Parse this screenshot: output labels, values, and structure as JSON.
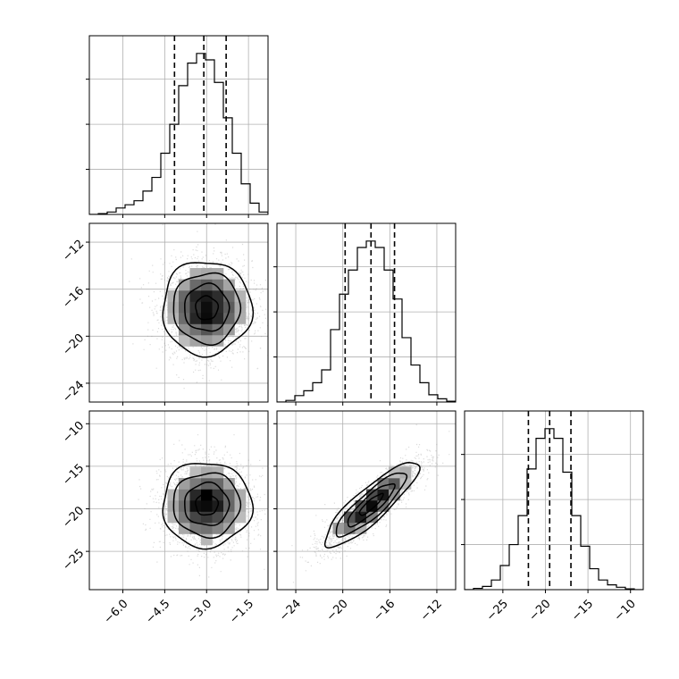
{
  "chart_data": {
    "type": "corner",
    "title": "",
    "grid": true,
    "parameters": [
      {
        "label": "",
        "axis_ticks": [
          -6.0,
          -4.5,
          -3.0,
          -1.5
        ],
        "tick_labels": [
          "−6.0",
          "−4.5",
          "−3.0",
          "−1.5"
        ],
        "range": [
          -7.2,
          -0.8
        ]
      },
      {
        "label": "",
        "axis_ticks": [
          -24,
          -20,
          -16,
          -12
        ],
        "tick_labels": [
          "−24",
          "−20",
          "−16",
          "−12"
        ],
        "range": [
          -25.6,
          -10.4
        ]
      },
      {
        "label": "",
        "axis_ticks": [
          -25,
          -20,
          -15,
          -10
        ],
        "tick_labels": [
          "−25",
          "−20",
          "−15",
          "−10"
        ],
        "range": [
          -29.5,
          -8.5
        ]
      }
    ],
    "marginals": [
      {
        "param": 0,
        "bin_edges": [
          -7.2,
          -6.88,
          -6.56,
          -6.24,
          -5.92,
          -5.6,
          -5.28,
          -4.96,
          -4.64,
          -4.32,
          -4.0,
          -3.68,
          -3.36,
          -3.04,
          -2.72,
          -2.4,
          -2.08,
          -1.76,
          -1.44,
          -1.12,
          -0.8
        ],
        "counts": [
          0,
          0.005,
          0.015,
          0.04,
          0.06,
          0.085,
          0.145,
          0.23,
          0.38,
          0.56,
          0.8,
          0.94,
          1.0,
          0.96,
          0.82,
          0.6,
          0.38,
          0.19,
          0.07,
          0.015
        ],
        "quantiles": [
          -4.15,
          -3.1,
          -2.3
        ]
      },
      {
        "param": 1,
        "bin_edges": [
          -25.6,
          -24.84,
          -24.08,
          -23.32,
          -22.56,
          -21.8,
          -21.04,
          -20.28,
          -19.52,
          -18.76,
          -18.0,
          -17.24,
          -16.48,
          -15.72,
          -14.96,
          -14.2,
          -13.44,
          -12.68,
          -11.92,
          -11.16,
          -10.4
        ],
        "counts": [
          0,
          0.01,
          0.04,
          0.07,
          0.12,
          0.2,
          0.45,
          0.67,
          0.82,
          0.96,
          1.0,
          0.96,
          0.82,
          0.64,
          0.4,
          0.23,
          0.12,
          0.045,
          0.02,
          0.005
        ],
        "quantiles": [
          -19.8,
          -17.6,
          -15.6
        ]
      },
      {
        "param": 2,
        "bin_edges": [
          -29.5,
          -28.45,
          -27.4,
          -26.35,
          -25.3,
          -24.25,
          -23.2,
          -22.15,
          -21.1,
          -20.05,
          -19.0,
          -17.95,
          -16.9,
          -15.85,
          -14.8,
          -13.75,
          -12.7,
          -11.65,
          -10.6,
          -9.55,
          -8.5
        ],
        "counts": [
          0,
          0.008,
          0.02,
          0.06,
          0.15,
          0.28,
          0.46,
          0.75,
          0.94,
          1.0,
          0.94,
          0.73,
          0.46,
          0.27,
          0.13,
          0.06,
          0.03,
          0.015,
          0.005,
          0
        ],
        "quantiles": [
          -22.0,
          -19.5,
          -17.0
        ]
      }
    ],
    "joints": [
      {
        "x_param": 0,
        "y_param": 1,
        "center": [
          -3.0,
          -17.6
        ],
        "sigma": [
          0.8,
          2.0
        ],
        "correlation": 0.0,
        "contour_levels": [
          0.118,
          0.393,
          0.675,
          0.864
        ]
      },
      {
        "x_param": 0,
        "y_param": 2,
        "center": [
          -3.0,
          -19.5
        ],
        "sigma": [
          0.8,
          2.5
        ],
        "correlation": 0.0,
        "contour_levels": [
          0.118,
          0.393,
          0.675,
          0.864
        ]
      },
      {
        "x_param": 1,
        "y_param": 2,
        "center": [
          -17.6,
          -19.5
        ],
        "sigma": [
          2.0,
          2.5
        ],
        "correlation": 0.87,
        "contour_levels": [
          0.118,
          0.393,
          0.675,
          0.864
        ]
      }
    ]
  }
}
